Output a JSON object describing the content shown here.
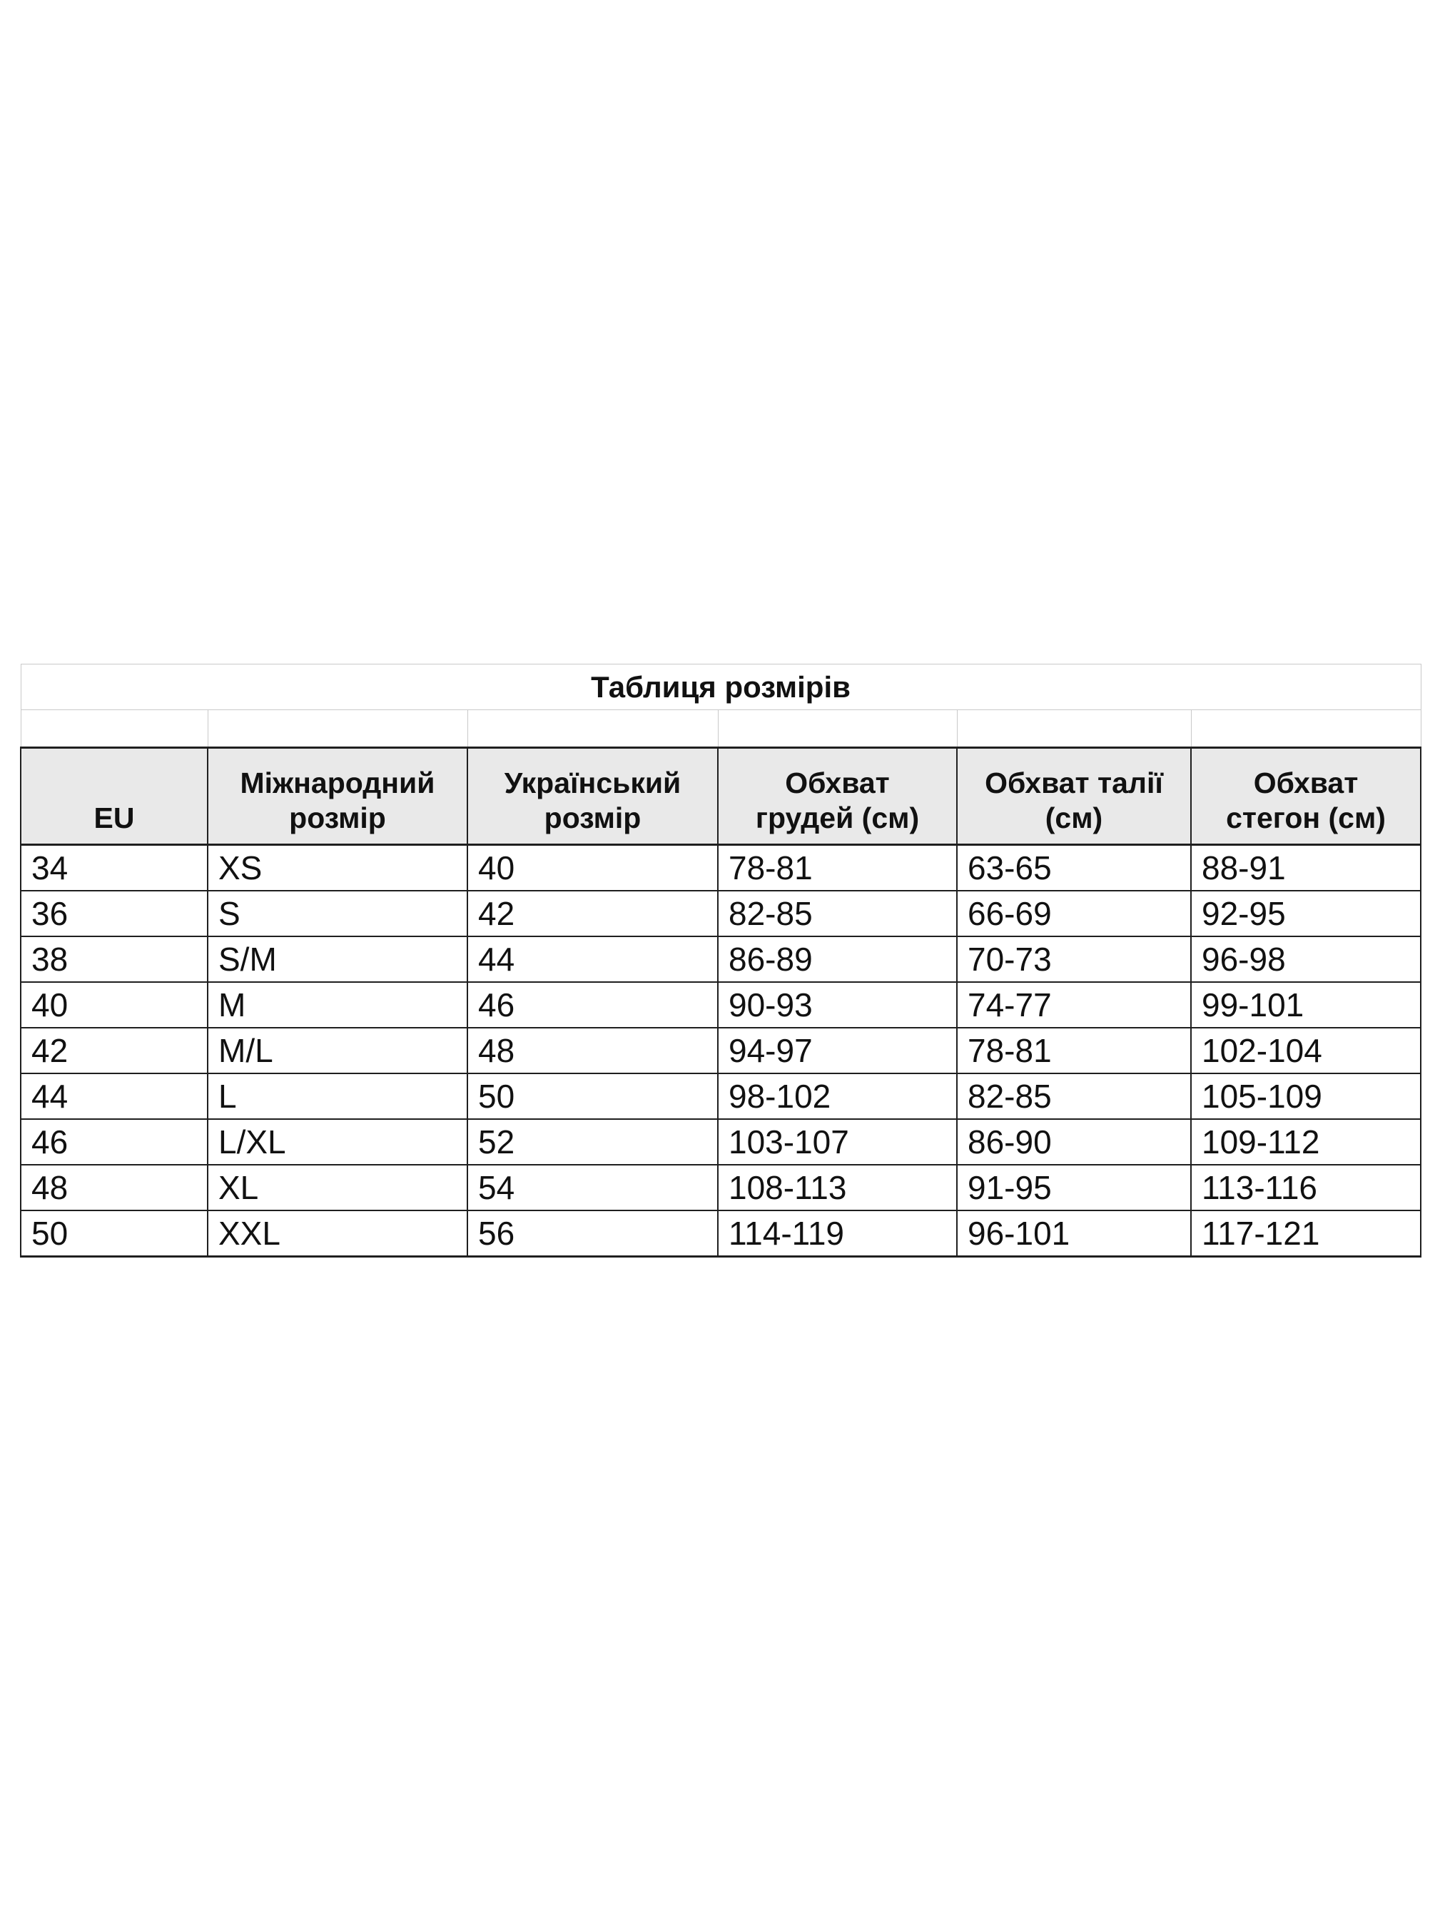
{
  "page": {
    "background": "#ffffff"
  },
  "table": {
    "title": "Таблиця розмірів",
    "columns": [
      "EU",
      "Міжнародний\nрозмір",
      "Український\nрозмір",
      "Обхват\nгрудей (см)",
      "Обхват талії\n(см)",
      "Обхват\nстегон (см)"
    ],
    "rows": [
      [
        "34",
        "XS",
        "40",
        "78-81",
        "63-65",
        "88-91"
      ],
      [
        "36",
        "S",
        "42",
        "82-85",
        "66-69",
        "92-95"
      ],
      [
        "38",
        "S/M",
        "44",
        "86-89",
        "70-73",
        "96-98"
      ],
      [
        "40",
        "M",
        "46",
        "90-93",
        "74-77",
        "99-101"
      ],
      [
        "42",
        "M/L",
        "48",
        "94-97",
        "78-81",
        "102-104"
      ],
      [
        "44",
        "L",
        "50",
        "98-102",
        "82-85",
        "105-109"
      ],
      [
        "46",
        "L/XL",
        "52",
        "103-107",
        "86-90",
        "109-112"
      ],
      [
        "48",
        "XL",
        "54",
        "108-113",
        "91-95",
        "113-116"
      ],
      [
        "50",
        "XXL",
        "56",
        "114-119",
        "96-101",
        "117-121"
      ]
    ],
    "colors": {
      "header_bg": "#e9e9e9",
      "border_dark": "#1f1f1f",
      "border_light": "#c9c9c9",
      "text": "#111111"
    }
  }
}
